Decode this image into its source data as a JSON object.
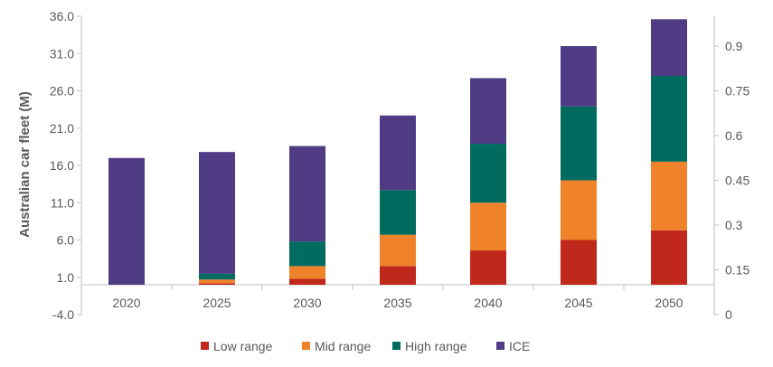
{
  "chart_data": {
    "type": "bar",
    "stacked": true,
    "categories": [
      "2020",
      "2025",
      "2030",
      "2035",
      "2040",
      "2045",
      "2050"
    ],
    "series": [
      {
        "name": "Low range",
        "color": "#c0281c",
        "values": [
          0,
          0.2,
          0.8,
          2.5,
          4.6,
          6.0,
          7.3
        ]
      },
      {
        "name": "Mid range",
        "color": "#f0822a",
        "values": [
          0,
          0.5,
          1.7,
          4.2,
          6.4,
          8.0,
          9.2
        ]
      },
      {
        "name": "High range",
        "color": "#006b5e",
        "values": [
          0,
          0.8,
          3.3,
          6.0,
          7.9,
          9.9,
          11.5
        ]
      },
      {
        "name": "ICE",
        "color": "#503c84",
        "values": [
          17.0,
          16.3,
          12.8,
          10.0,
          8.8,
          8.1,
          7.6
        ]
      }
    ],
    "ylabel": "Australian car fleet (M)",
    "y_ticks": [
      "36.0",
      "31.0",
      "26.0",
      "21.0",
      "16.0",
      "11.0",
      "6.0",
      "1.0",
      "-4.0"
    ],
    "ylim": [
      -4.0,
      36.0
    ],
    "secondary_y_ticks": [
      "0.9",
      "0.75",
      "0.6",
      "0.45",
      "0.3",
      "0.15",
      "0"
    ],
    "secondary_ylim": [
      0,
      1.0
    ],
    "legend_position": "bottom",
    "grid": false
  }
}
